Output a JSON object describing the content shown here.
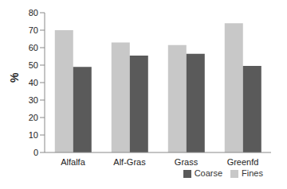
{
  "chart_data": {
    "type": "bar",
    "ylabel": "%",
    "categories": [
      "Alfalfa",
      "Alf-Gras",
      "Grass",
      "Greenfd"
    ],
    "series": [
      {
        "name": "Fines",
        "color": "#c8c8c8",
        "values": [
          70,
          63,
          61.5,
          74
        ]
      },
      {
        "name": "Coarse",
        "color": "#5a5a5a",
        "values": [
          49,
          55.5,
          56.5,
          49.5
        ]
      }
    ],
    "ylim": [
      0,
      80
    ],
    "yticks": [
      0,
      10,
      20,
      30,
      40,
      50,
      60,
      70,
      80
    ],
    "grid": false,
    "legend": "bottom right"
  }
}
